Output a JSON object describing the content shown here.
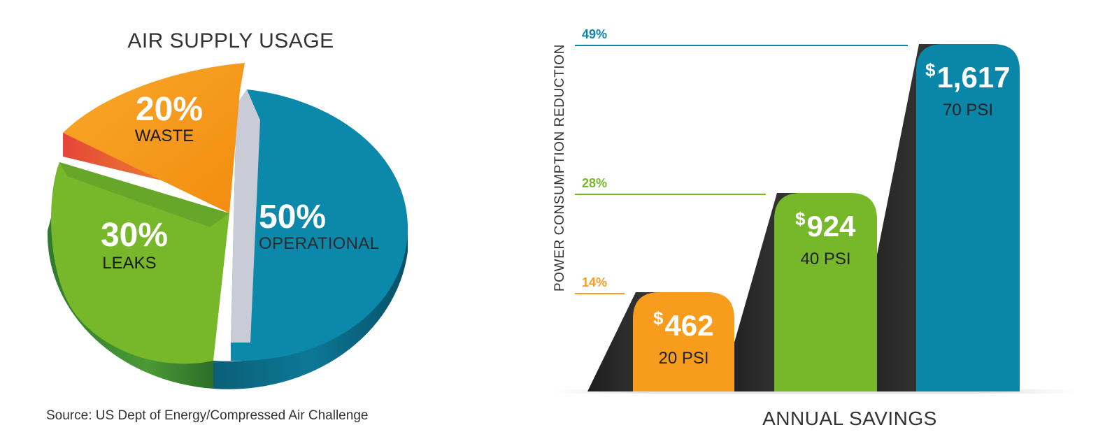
{
  "colors": {
    "operational": "#0a86a8",
    "leaks": "#76b82a",
    "waste": "#f79c1c",
    "dark_ramp": "#262626"
  },
  "chart_data": [
    {
      "type": "pie",
      "title": "AIR SUPPLY USAGE",
      "slices": [
        {
          "label": "OPERATIONAL",
          "value": 50,
          "display": "50%",
          "color": "#0a86a8"
        },
        {
          "label": "LEAKS",
          "value": 30,
          "display": "30%",
          "color": "#76b82a"
        },
        {
          "label": "WASTE",
          "value": 20,
          "display": "20%",
          "color": "#f79c1c"
        }
      ],
      "source": "Source: US Dept of Energy/Compressed Air Challenge"
    },
    {
      "type": "bar",
      "xlabel": "ANNUAL SAVINGS",
      "ylabel": "POWER CONSUMPTION REDUCTION",
      "categories": [
        "20 PSI",
        "40 PSI",
        "70 PSI"
      ],
      "values": [
        14,
        28,
        49
      ],
      "value_labels": [
        "14%",
        "28%",
        "49%"
      ],
      "savings": [
        "$462",
        "$924",
        "$1,617"
      ],
      "savings_dollar_sign": "$",
      "savings_amount": [
        "462",
        "924",
        "1,617"
      ],
      "bar_colors": [
        "#f79c1c",
        "#76b82a",
        "#0a86a8"
      ],
      "ylim": [
        0,
        49
      ]
    }
  ]
}
